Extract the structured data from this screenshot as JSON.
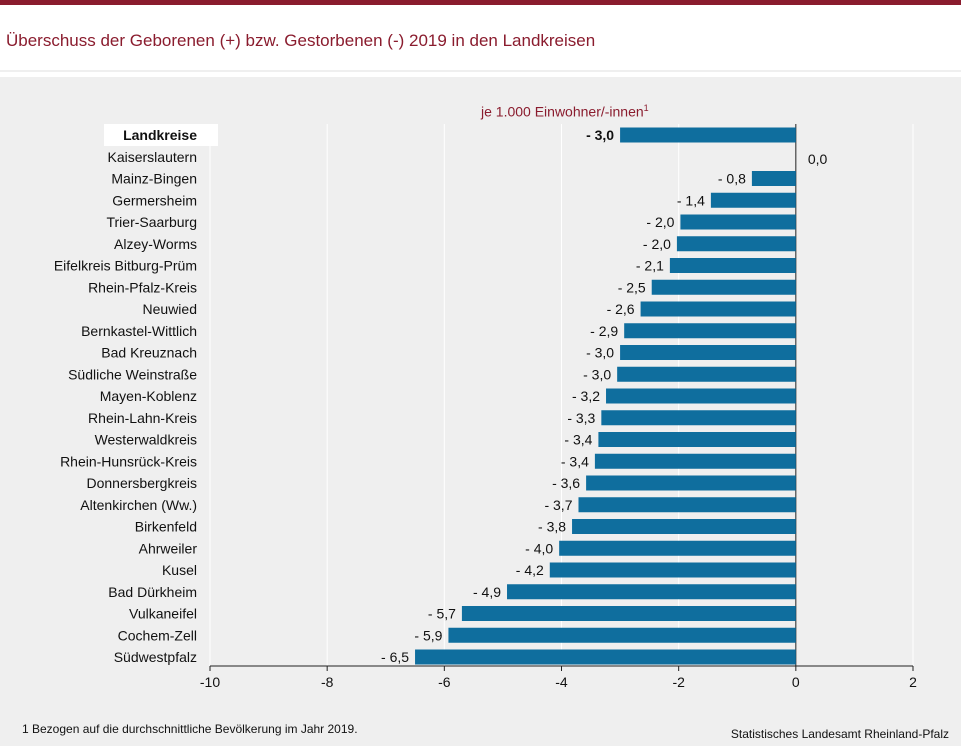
{
  "title": "Überschuss der Geborenen (+) bzw. Gestorbenen (-) 2019 in den Landkreisen",
  "unit_label": "je 1.000 Einwohner/-innen",
  "unit_label_sup": "1",
  "footnote": "1 Bezogen auf die durchschnittliche Bevölkerung  im Jahr 2019.",
  "source": "Statistisches Landesamt Rheinland-Pfalz",
  "colors": {
    "bar": "#0f6e9e",
    "accent": "#8a1c2e",
    "panel": "#efefef"
  },
  "chart_data": {
    "type": "bar",
    "orientation": "horizontal",
    "categories": [
      "Landkreise",
      "Kaiserslautern",
      "Mainz-Bingen",
      "Germersheim",
      "Trier-Saarburg",
      "Alzey-Worms",
      "Eifelkreis Bitburg-Prüm",
      "Rhein-Pfalz-Kreis",
      "Neuwied",
      "Bernkastel-Wittlich",
      "Bad Kreuznach",
      "Südliche Weinstraße",
      "Mayen-Koblenz",
      "Rhein-Lahn-Kreis",
      "Westerwaldkreis",
      "Rhein-Hunsrück-Kreis",
      "Donnersbergkreis",
      "Altenkirchen (Ww.)",
      "Birkenfeld",
      "Ahrweiler",
      "Kusel",
      "Bad Dürkheim",
      "Vulkaneifel",
      "Cochem-Zell",
      "Südwestpfalz"
    ],
    "values": [
      -3.0,
      0.0,
      -0.75,
      -1.45,
      -1.97,
      -2.03,
      -2.15,
      -2.46,
      -2.65,
      -2.93,
      -3.0,
      -3.05,
      -3.24,
      -3.32,
      -3.37,
      -3.43,
      -3.58,
      -3.71,
      -3.82,
      -4.04,
      -4.2,
      -4.93,
      -5.7,
      -5.93,
      -6.5
    ],
    "value_labels": [
      "- 3,0",
      "0,0",
      "- 0,8",
      "- 1,4",
      "- 2,0",
      "- 2,0",
      "- 2,1",
      "- 2,5",
      "- 2,6",
      "- 2,9",
      "- 3,0",
      "- 3,0",
      "- 3,2",
      "- 3,3",
      "- 3,4",
      "- 3,4",
      "- 3,6",
      "- 3,7",
      "- 3,8",
      "- 4,0",
      "- 4,2",
      "- 4,9",
      "- 5,7",
      "- 5,9",
      "- 6,5"
    ],
    "highlight_category": "Landkreise",
    "xlim": [
      -10,
      2
    ],
    "xticks": [
      -10,
      -8,
      -6,
      -4,
      -2,
      0,
      2
    ],
    "xtick_labels": [
      "-10",
      "-8",
      "-6",
      "-4",
      "-2",
      "0",
      "2"
    ],
    "grid": "vertical",
    "legend": "none"
  }
}
